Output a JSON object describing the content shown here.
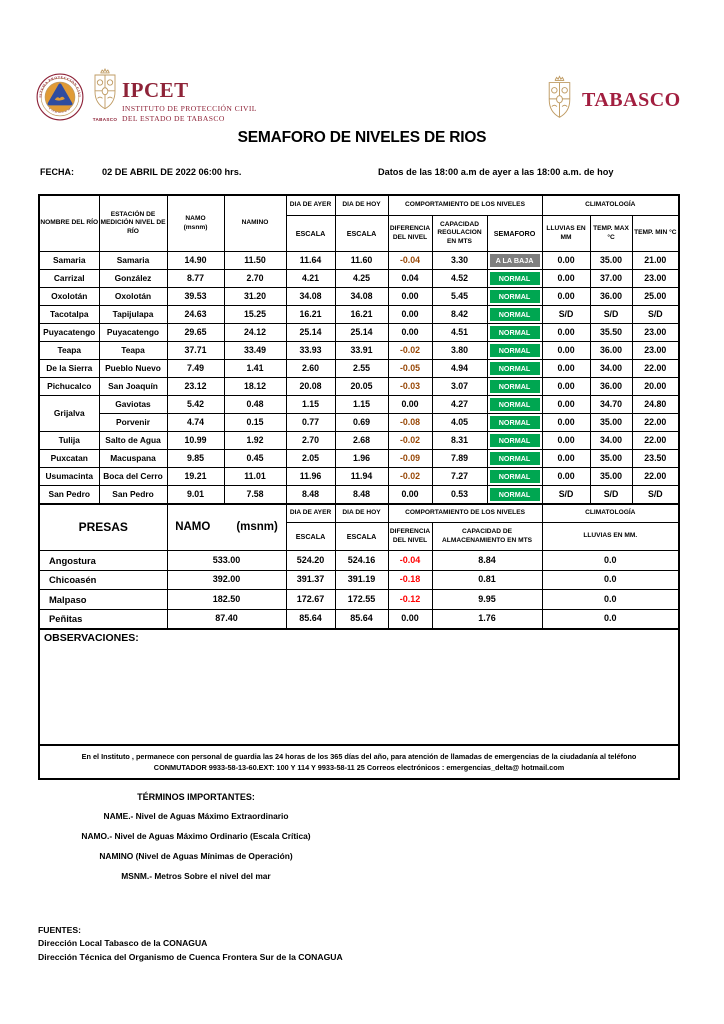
{
  "colors": {
    "maroon": "#8E2338",
    "crimson": "#A21E3F",
    "gold": "#BF9B63",
    "river_negative": "#974706",
    "dam_negative": "#FF0000"
  },
  "semaforo_colors": {
    "NORMAL": "#00A651",
    "A LA BAJA": "#7F7F7F"
  },
  "header": {
    "ipcet_acronym": "IPCET",
    "ipcet_line1": "INSTITUTO DE PROTECCIÓN CIVIL",
    "ipcet_line2": "DEL ESTADO DE TABASCO",
    "seal_top_text": "SISTEMA PROTECCIÓN CIVIL",
    "seal_bottom_text": "TABASCO",
    "left_crest_caption": "TABASCO",
    "state_name": "TABASCO",
    "title": "SEMAFORO DE NIVELES DE RIOS",
    "fecha_label": "FECHA:",
    "fecha_value": "02 DE ABRIL DE 2022 06:00 hrs.",
    "rango_datos": "Datos de las 18:00 a.m de ayer a las 18:00 a.m. de hoy"
  },
  "rivers_table": {
    "col_headers": {
      "nombre": "NOMBRE DEL RÍO",
      "estacion": "ESTACIÓN DE MEDICIÓN NIVEL DE RÍO",
      "namo": "NAMO",
      "namo_unit": "(msnm)",
      "namino": "NAMINO",
      "dia_ayer": "DIA DE AYER",
      "dia_hoy": "DIA DE HOY",
      "escala": "ESCALA",
      "comportamiento": "COMPORTAMIENTO DE LOS NIVELES",
      "diferencia": "DIFERENCIA DEL NIVEL",
      "capacidad": "CAPACIDAD REGULACION EN MTS",
      "semaforo": "SEMAFORO",
      "climatologia": "CLIMATOLOGÍA",
      "lluvias": "LLUVIAS EN MM",
      "temp_max": "TEMP. MAX °C",
      "temp_min": "TEMP.  MIN °C"
    },
    "rows": [
      {
        "rio": "Samaria",
        "estacion": "Samaria",
        "namo": "14.90",
        "namino": "11.50",
        "ayer": "11.64",
        "hoy": "11.60",
        "dif": "-0.04",
        "cap": "3.30",
        "sem": "A LA BAJA",
        "lluvia": "0.00",
        "tmax": "35.00",
        "tmin": "21.00"
      },
      {
        "rio": "Carrizal",
        "estacion": "González",
        "namo": "8.77",
        "namino": "2.70",
        "ayer": "4.21",
        "hoy": "4.25",
        "dif": "0.04",
        "cap": "4.52",
        "sem": "NORMAL",
        "lluvia": "0.00",
        "tmax": "37.00",
        "tmin": "23.00"
      },
      {
        "rio": "Oxolotán",
        "estacion": "Oxolotán",
        "namo": "39.53",
        "namino": "31.20",
        "ayer": "34.08",
        "hoy": "34.08",
        "dif": "0.00",
        "cap": "5.45",
        "sem": "NORMAL",
        "lluvia": "0.00",
        "tmax": "36.00",
        "tmin": "25.00"
      },
      {
        "rio": "Tacotalpa",
        "estacion": "Tapijulapa",
        "namo": "24.63",
        "namino": "15.25",
        "ayer": "16.21",
        "hoy": "16.21",
        "dif": "0.00",
        "cap": "8.42",
        "sem": "NORMAL",
        "lluvia": "S/D",
        "tmax": "S/D",
        "tmin": "S/D"
      },
      {
        "rio": "Puyacatengo",
        "estacion": "Puyacatengo",
        "namo": "29.65",
        "namino": "24.12",
        "ayer": "25.14",
        "hoy": "25.14",
        "dif": "0.00",
        "cap": "4.51",
        "sem": "NORMAL",
        "lluvia": "0.00",
        "tmax": "35.50",
        "tmin": "23.00"
      },
      {
        "rio": "Teapa",
        "estacion": "Teapa",
        "namo": "37.71",
        "namino": "33.49",
        "ayer": "33.93",
        "hoy": "33.91",
        "dif": "-0.02",
        "cap": "3.80",
        "sem": "NORMAL",
        "lluvia": "0.00",
        "tmax": "36.00",
        "tmin": "23.00"
      },
      {
        "rio": "De la Sierra",
        "estacion": "Pueblo Nuevo",
        "namo": "7.49",
        "namino": "1.41",
        "ayer": "2.60",
        "hoy": "2.55",
        "dif": "-0.05",
        "cap": "4.94",
        "sem": "NORMAL",
        "lluvia": "0.00",
        "tmax": "34.00",
        "tmin": "22.00"
      },
      {
        "rio": "Pichucalco",
        "estacion": "San Joaquín",
        "namo": "23.12",
        "namino": "18.12",
        "ayer": "20.08",
        "hoy": "20.05",
        "dif": "-0.03",
        "cap": "3.07",
        "sem": "NORMAL",
        "lluvia": "0.00",
        "tmax": "36.00",
        "tmin": "20.00"
      },
      {
        "rio": "Grijalva",
        "rio_rowspan": 2,
        "estacion": "Gaviotas",
        "namo": "5.42",
        "namino": "0.48",
        "ayer": "1.15",
        "hoy": "1.15",
        "dif": "0.00",
        "cap": "4.27",
        "sem": "NORMAL",
        "lluvia": "0.00",
        "tmax": "34.70",
        "tmin": "24.80"
      },
      {
        "rio": null,
        "estacion": "Porvenir",
        "namo": "4.74",
        "namino": "0.15",
        "ayer": "0.77",
        "hoy": "0.69",
        "dif": "-0.08",
        "cap": "4.05",
        "sem": "NORMAL",
        "lluvia": "0.00",
        "tmax": "35.00",
        "tmin": "22.00"
      },
      {
        "rio": "Tulija",
        "estacion": "Salto de Agua",
        "namo": "10.99",
        "namino": "1.92",
        "ayer": "2.70",
        "hoy": "2.68",
        "dif": "-0.02",
        "cap": "8.31",
        "sem": "NORMAL",
        "lluvia": "0.00",
        "tmax": "34.00",
        "tmin": "22.00"
      },
      {
        "rio": "Puxcatan",
        "estacion": "Macuspana",
        "namo": "9.85",
        "namino": "0.45",
        "ayer": "2.05",
        "hoy": "1.96",
        "dif": "-0.09",
        "cap": "7.89",
        "sem": "NORMAL",
        "lluvia": "0.00",
        "tmax": "35.00",
        "tmin": "23.50"
      },
      {
        "rio": "Usumacinta",
        "estacion": "Boca del Cerro",
        "namo": "19.21",
        "namino": "11.01",
        "ayer": "11.96",
        "hoy": "11.94",
        "dif": "-0.02",
        "cap": "7.27",
        "sem": "NORMAL",
        "lluvia": "0.00",
        "tmax": "35.00",
        "tmin": "22.00"
      },
      {
        "rio": "San Pedro",
        "estacion": "San Pedro",
        "namo": "9.01",
        "namino": "7.58",
        "ayer": "8.48",
        "hoy": "8.48",
        "dif": "0.00",
        "cap": "0.53",
        "sem": "NORMAL",
        "lluvia": "S/D",
        "tmax": "S/D",
        "tmin": "S/D"
      }
    ]
  },
  "dams_table": {
    "col_headers": {
      "presas": "PRESAS",
      "namo": "NAMO",
      "namo_unit": "(msnm)",
      "dia_ayer": "DIA DE AYER",
      "dia_hoy": "DIA DE HOY",
      "escala": "ESCALA",
      "comportamiento": "COMPORTAMIENTO DE LOS NIVELES",
      "diferencia": "DIFERENCIA DEL NIVEL",
      "capacidad": "CAPACIDAD DE ALMACENAMIENTO EN MTS",
      "climatologia": "CLIMATOLOGÍA",
      "lluvias": "LLUVIAS EN MM."
    },
    "rows": [
      {
        "presa": "Angostura",
        "namo": "533.00",
        "ayer": "524.20",
        "hoy": "524.16",
        "dif": "-0.04",
        "cap": "8.84",
        "lluvia": "0.0"
      },
      {
        "presa": "Chicoasén",
        "namo": "392.00",
        "ayer": "391.37",
        "hoy": "391.19",
        "dif": "-0.18",
        "cap": "0.81",
        "lluvia": "0.0"
      },
      {
        "presa": "Malpaso",
        "namo": "182.50",
        "ayer": "172.67",
        "hoy": "172.55",
        "dif": "-0.12",
        "cap": "9.95",
        "lluvia": "0.0"
      },
      {
        "presa": "Peñitas",
        "namo": "87.40",
        "ayer": "85.64",
        "hoy": "85.64",
        "dif": "0.00",
        "cap": "1.76",
        "lluvia": "0.0"
      }
    ]
  },
  "observaciones_label": "OBSERVACIONES:",
  "footer_note": {
    "line1": "En el Instituto , permanece con personal de guardia las 24 horas de los 365 días del año, para atención de llamadas de emergencias de la ciudadanía al teléfono",
    "line2": "CONMUTADOR  9933-58-13-60.EXT: 100 Y 114  Y 9933-58-11 25   Correos electrónicos : emergencias_delta@ hotmail.com"
  },
  "terms": {
    "title": "TÉRMINOS IMPORTANTES:",
    "items": [
      "NAME.-  Nivel de Aguas Máximo Extraordinario",
      "NAMO.-  Nivel de Aguas Máximo Ordinario (Escala Crítica)",
      "NAMINO (Nivel de Aguas Mínimas de Operación)",
      "MSNM.-  Metros Sobre el nivel del mar"
    ]
  },
  "fuentes": {
    "title": "FUENTES:",
    "items": [
      "Dirección Local Tabasco de la CONAGUA",
      "Dirección Técnica del Organismo de Cuenca Frontera Sur de la CONAGUA"
    ]
  }
}
